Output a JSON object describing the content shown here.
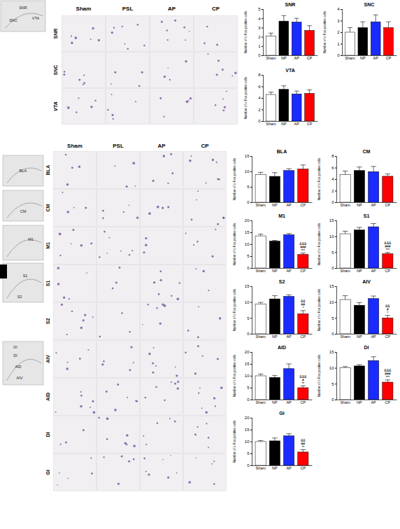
{
  "micrographs": [
    {
      "columns": [
        "Sham",
        "PSL",
        "AP",
        "CP"
      ],
      "rows": [
        "SNR",
        "SNC",
        "VTA"
      ],
      "atlas_labels": [
        [
          "SNR",
          "SNC",
          "VTA"
        ]
      ]
    },
    {
      "columns": [
        "Sham",
        "PSL",
        "AP",
        "CP"
      ],
      "rows": [
        "BLA",
        "CM",
        "M1",
        "S1",
        "S2",
        "AIV",
        "AID",
        "DI",
        "GI"
      ],
      "atlas_labels": [
        [
          "BLA"
        ],
        [
          "CM"
        ],
        [
          "M1"
        ],
        [
          "S1",
          "S2"
        ],
        [
          "GI",
          "DI",
          "AID",
          "AIV"
        ]
      ]
    }
  ],
  "chart_data": [
    {
      "type": "bar",
      "title": "SNR",
      "y_label": "Number of c-Fos positive cells",
      "categories": [
        "Sham",
        "NP",
        "AP",
        "CP"
      ],
      "values": [
        2.1,
        3.7,
        3.6,
        2.7
      ],
      "errors": [
        0.3,
        0.6,
        0.4,
        0.5
      ],
      "colors": [
        "#ffffff",
        "#000000",
        "#1a2bff",
        "#ff0000"
      ],
      "ylim": [
        0,
        5
      ],
      "yticks": [
        0,
        1,
        2,
        3,
        4,
        5
      ]
    },
    {
      "type": "bar",
      "title": "SNC",
      "y_label": "Number of c-Fos positive cells",
      "categories": [
        "Sham",
        "NP",
        "AP",
        "CP"
      ],
      "values": [
        2.0,
        2.4,
        2.9,
        2.4
      ],
      "errors": [
        0.4,
        0.5,
        0.6,
        0.5
      ],
      "colors": [
        "#ffffff",
        "#000000",
        "#1a2bff",
        "#ff0000"
      ],
      "ylim": [
        0,
        4
      ],
      "yticks": [
        0,
        1,
        2,
        3,
        4
      ]
    },
    {
      "type": "bar",
      "title": "VTA",
      "y_label": "Number of c-Fos positive cells",
      "categories": [
        "Sham",
        "NP",
        "AP",
        "CP"
      ],
      "values": [
        4.6,
        5.5,
        4.7,
        4.8
      ],
      "errors": [
        0.4,
        0.6,
        0.5,
        0.6
      ],
      "colors": [
        "#ffffff",
        "#000000",
        "#1a2bff",
        "#ff0000"
      ],
      "ylim": [
        0,
        8
      ],
      "yticks": [
        0,
        2,
        4,
        6,
        8
      ]
    },
    {
      "type": "bar",
      "title": "BLA",
      "y_label": "Number of c-Fos positive cells",
      "categories": [
        "Sham",
        "NP",
        "AP",
        "CP"
      ],
      "values": [
        9.0,
        8.4,
        10.3,
        10.8
      ],
      "errors": [
        0.7,
        1.2,
        0.6,
        1.3
      ],
      "colors": [
        "#ffffff",
        "#000000",
        "#1a2bff",
        "#ff0000"
      ],
      "ylim": [
        0,
        15
      ],
      "yticks": [
        0,
        5,
        10,
        15
      ]
    },
    {
      "type": "bar",
      "title": "CM",
      "y_label": "Number of c-Fos positive cells",
      "categories": [
        "Sham",
        "NP",
        "AP",
        "CP"
      ],
      "values": [
        4.8,
        5.5,
        5.3,
        4.5
      ],
      "errors": [
        0.6,
        0.6,
        0.9,
        0.4
      ],
      "colors": [
        "#ffffff",
        "#000000",
        "#1a2bff",
        "#ff0000"
      ],
      "ylim": [
        0,
        8
      ],
      "yticks": [
        0,
        2,
        4,
        6,
        8
      ]
    },
    {
      "type": "bar",
      "title": "M1",
      "y_label": "Number of c-Fos positive cells",
      "categories": [
        "Sham",
        "NP",
        "AP",
        "CP"
      ],
      "values": [
        13.5,
        11.3,
        14.0,
        5.7
      ],
      "errors": [
        0.7,
        0.3,
        0.5,
        0.6
      ],
      "colors": [
        "#ffffff",
        "#000000",
        "#1a2bff",
        "#ff0000"
      ],
      "ylim": [
        0,
        20
      ],
      "yticks": [
        0,
        5,
        10,
        15,
        20
      ],
      "annotations": [
        {
          "x": "CP",
          "text": [
            "&&&",
            "###",
            "***"
          ]
        }
      ]
    },
    {
      "type": "bar",
      "title": "S1",
      "y_label": "Number of c-Fos positive cells",
      "categories": [
        "Sham",
        "NP",
        "AP",
        "CP"
      ],
      "values": [
        10.8,
        12.0,
        13.0,
        4.5
      ],
      "errors": [
        0.8,
        0.8,
        1.0,
        0.4
      ],
      "colors": [
        "#ffffff",
        "#000000",
        "#1a2bff",
        "#ff0000"
      ],
      "ylim": [
        0,
        15
      ],
      "yticks": [
        0,
        5,
        10,
        15
      ],
      "annotations": [
        {
          "x": "CP",
          "text": [
            "&&&",
            "###",
            "***"
          ]
        }
      ]
    },
    {
      "type": "bar",
      "title": "S2",
      "y_label": "Number of c-Fos positive cells",
      "categories": [
        "Sham",
        "NP",
        "AP",
        "CP"
      ],
      "values": [
        9.4,
        11.0,
        11.8,
        6.3
      ],
      "errors": [
        0.5,
        1.0,
        0.5,
        1.0
      ],
      "colors": [
        "#ffffff",
        "#000000",
        "#1a2bff",
        "#ff0000"
      ],
      "ylim": [
        0,
        15
      ],
      "yticks": [
        0,
        5,
        10,
        15
      ],
      "annotations": [
        {
          "x": "CP",
          "text": [
            "&&",
            "##",
            "*"
          ]
        }
      ]
    },
    {
      "type": "bar",
      "title": "AIV",
      "y_label": "Number of c-Fos positive cells",
      "categories": [
        "Sham",
        "NP",
        "AP",
        "CP"
      ],
      "values": [
        10.8,
        9.0,
        11.1,
        5.0
      ],
      "errors": [
        1.2,
        0.8,
        0.8,
        0.8
      ],
      "colors": [
        "#ffffff",
        "#000000",
        "#1a2bff",
        "#ff0000"
      ],
      "ylim": [
        0,
        15
      ],
      "yticks": [
        0,
        5,
        10,
        15
      ],
      "annotations": [
        {
          "x": "CP",
          "text": [
            "&&",
            "#",
            "*"
          ]
        }
      ]
    },
    {
      "type": "bar",
      "title": "AID",
      "y_label": "Number of c-Fos positive cells",
      "categories": [
        "Sham",
        "NP",
        "AP",
        "CP"
      ],
      "values": [
        10.0,
        9.3,
        13.0,
        5.0
      ],
      "errors": [
        0.7,
        0.8,
        2.0,
        0.8
      ],
      "colors": [
        "#ffffff",
        "#000000",
        "#1a2bff",
        "#ff0000"
      ],
      "ylim": [
        0,
        20
      ],
      "yticks": [
        0,
        5,
        10,
        15,
        20
      ],
      "annotations": [
        {
          "x": "CP",
          "text": [
            "&&&",
            "#",
            "**"
          ]
        }
      ]
    },
    {
      "type": "bar",
      "title": "DI",
      "y_label": "Number of c-Fos positive cells",
      "categories": [
        "Sham",
        "NP",
        "AP",
        "CP"
      ],
      "values": [
        10.1,
        10.6,
        12.3,
        5.5
      ],
      "errors": [
        0.3,
        0.4,
        1.2,
        0.7
      ],
      "colors": [
        "#ffffff",
        "#000000",
        "#1a2bff",
        "#ff0000"
      ],
      "ylim": [
        0,
        15
      ],
      "yticks": [
        0,
        5,
        10,
        15
      ],
      "annotations": [
        {
          "x": "CP",
          "text": [
            "&&&",
            "###",
            "***"
          ]
        }
      ]
    },
    {
      "type": "bar",
      "title": "GI",
      "y_label": "Number of c-Fos positive cells",
      "categories": [
        "Sham",
        "NP",
        "AP",
        "CP"
      ],
      "values": [
        10.0,
        10.3,
        12.4,
        5.6
      ],
      "errors": [
        0.4,
        1.2,
        0.9,
        1.0
      ],
      "colors": [
        "#ffffff",
        "#000000",
        "#1a2bff",
        "#ff0000"
      ],
      "ylim": [
        0,
        20
      ],
      "yticks": [
        0,
        5,
        10,
        15,
        20
      ],
      "annotations": [
        {
          "x": "CP",
          "text": [
            "&&",
            "##",
            "**"
          ]
        }
      ]
    }
  ]
}
